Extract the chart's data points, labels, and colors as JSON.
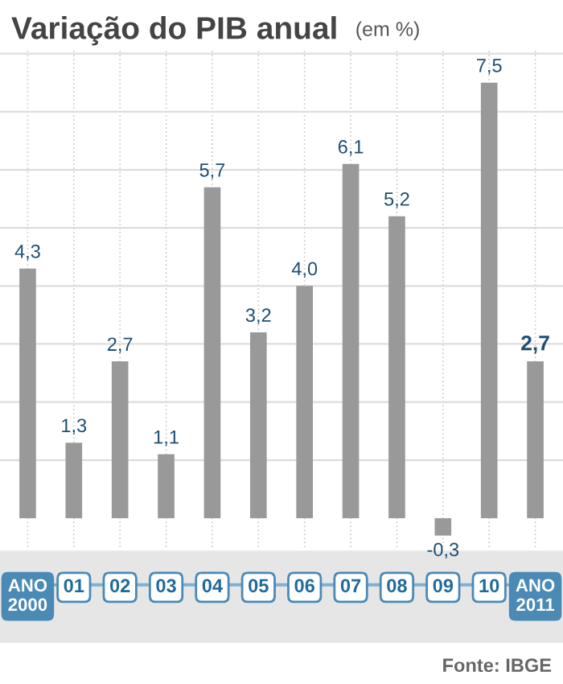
{
  "chart_data": {
    "type": "bar",
    "title": "Variação do PIB anual",
    "subtitle": "(em %)",
    "categories": [
      "ANO\n2000",
      "01",
      "02",
      "03",
      "04",
      "05",
      "06",
      "07",
      "08",
      "09",
      "10",
      "ANO\n2011"
    ],
    "values": [
      4.3,
      1.3,
      2.7,
      1.1,
      5.7,
      3.2,
      4.0,
      6.1,
      5.2,
      -0.3,
      7.5,
      2.7
    ],
    "value_labels": [
      "4,3",
      "1,3",
      "2,7",
      "1,1",
      "5,7",
      "3,2",
      "4,0",
      "6,1",
      "5,2",
      "-0,3",
      "7,5",
      "2,7"
    ],
    "color": "#999999",
    "ylim": [
      -0.5,
      8.1
    ],
    "yticks": [
      {
        "value": 1,
        "label": null
      },
      {
        "value": 2,
        "label": null
      },
      {
        "value": 3,
        "label": null
      },
      {
        "value": 4,
        "label": null
      },
      {
        "value": 5,
        "label": null
      },
      {
        "value": 6,
        "label": null
      },
      {
        "value": 7,
        "label": null
      },
      {
        "value": 8,
        "label": null
      }
    ],
    "grid": true,
    "tick_labels": "x",
    "annotations": [
      "Fonte: IBGE"
    ]
  }
}
